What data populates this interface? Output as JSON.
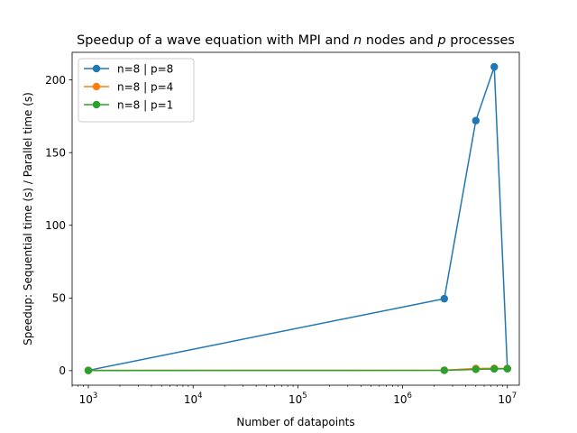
{
  "chart_data": {
    "type": "line",
    "title": "Speedup of a wave equation with MPI and n nodes and p processes",
    "title_parts": {
      "pre": "Speedup of a wave equation with MPI and ",
      "var1": "n",
      "mid": " nodes and ",
      "var2": "p",
      "post": " processes"
    },
    "xlabel": "Number of datapoints",
    "ylabel": "Speedup: Sequential time (s) / Parallel time (s)",
    "xscale": "log",
    "xlim": [
      700,
      13000000
    ],
    "ylim": [
      -10,
      219
    ],
    "xticks": [
      {
        "value": 1000,
        "base": "10",
        "exp": "3"
      },
      {
        "value": 10000,
        "base": "10",
        "exp": "4"
      },
      {
        "value": 100000,
        "base": "10",
        "exp": "5"
      },
      {
        "value": 1000000,
        "base": "10",
        "exp": "6"
      },
      {
        "value": 10000000,
        "base": "10",
        "exp": "7"
      }
    ],
    "yticks": [
      {
        "value": 0,
        "label": "0"
      },
      {
        "value": 50,
        "label": "50"
      },
      {
        "value": 100,
        "label": "100"
      },
      {
        "value": 150,
        "label": "150"
      },
      {
        "value": 200,
        "label": "200"
      }
    ],
    "grid": false,
    "legend_position": "top-left",
    "series": [
      {
        "name": "n=8 | p=8",
        "color": "#1f77b4",
        "x": [
          1000,
          2500000,
          5000000,
          7500000,
          10000000
        ],
        "y": [
          0.2,
          49.5,
          172,
          209,
          1.5
        ]
      },
      {
        "name": "n=8 | p=4",
        "color": "#ff7f0e",
        "x": [
          1000,
          2500000,
          5000000,
          7500000,
          10000000
        ],
        "y": [
          0.2,
          0.3,
          1.5,
          1.6,
          1.4
        ]
      },
      {
        "name": "n=8 | p=1",
        "color": "#2ca02c",
        "x": [
          1000,
          2500000,
          5000000,
          7500000,
          10000000
        ],
        "y": [
          0.1,
          0.2,
          0.9,
          1.2,
          1.3
        ]
      }
    ]
  }
}
